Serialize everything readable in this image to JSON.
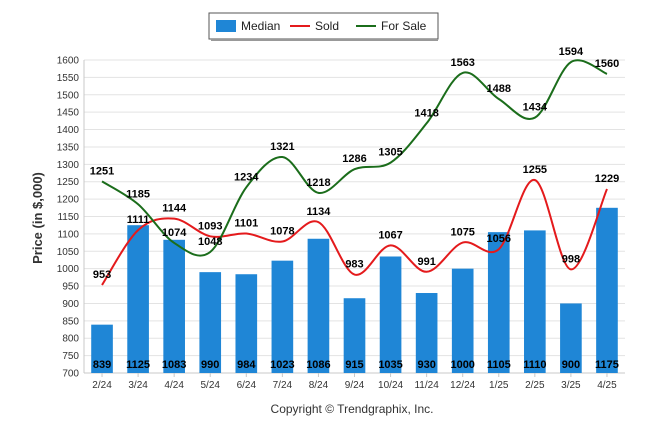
{
  "chart_data": {
    "type": "bar",
    "ylabel": "Price (in $,000)",
    "ylim": [
      700,
      1600
    ],
    "ytick_step": 50,
    "categories": [
      "2/24",
      "3/24",
      "4/24",
      "5/24",
      "6/24",
      "7/24",
      "8/24",
      "9/24",
      "10/24",
      "11/24",
      "12/24",
      "1/25",
      "2/25",
      "3/25",
      "4/25"
    ],
    "series": [
      {
        "name": "Median",
        "type": "bar",
        "color": "#1f86d6",
        "values": [
          839,
          1125,
          1083,
          990,
          984,
          1023,
          1086,
          915,
          1035,
          930,
          1000,
          1105,
          1110,
          900,
          1175
        ]
      },
      {
        "name": "Sold",
        "type": "line",
        "color": "#e41a1c",
        "values": [
          953,
          1111,
          1144,
          1093,
          1101,
          1078,
          1134,
          983,
          1067,
          991,
          1075,
          1056,
          1255,
          998,
          1229
        ]
      },
      {
        "name": "For Sale",
        "type": "line",
        "color": "#1b6d1b",
        "values": [
          1251,
          1185,
          1074,
          1048,
          1234,
          1321,
          1218,
          1286,
          1305,
          1418,
          1563,
          1488,
          1434,
          1594,
          1560
        ]
      }
    ],
    "grid": true,
    "legend": "top-center"
  },
  "copyright": "Copyright © Trendgraphix, Inc."
}
